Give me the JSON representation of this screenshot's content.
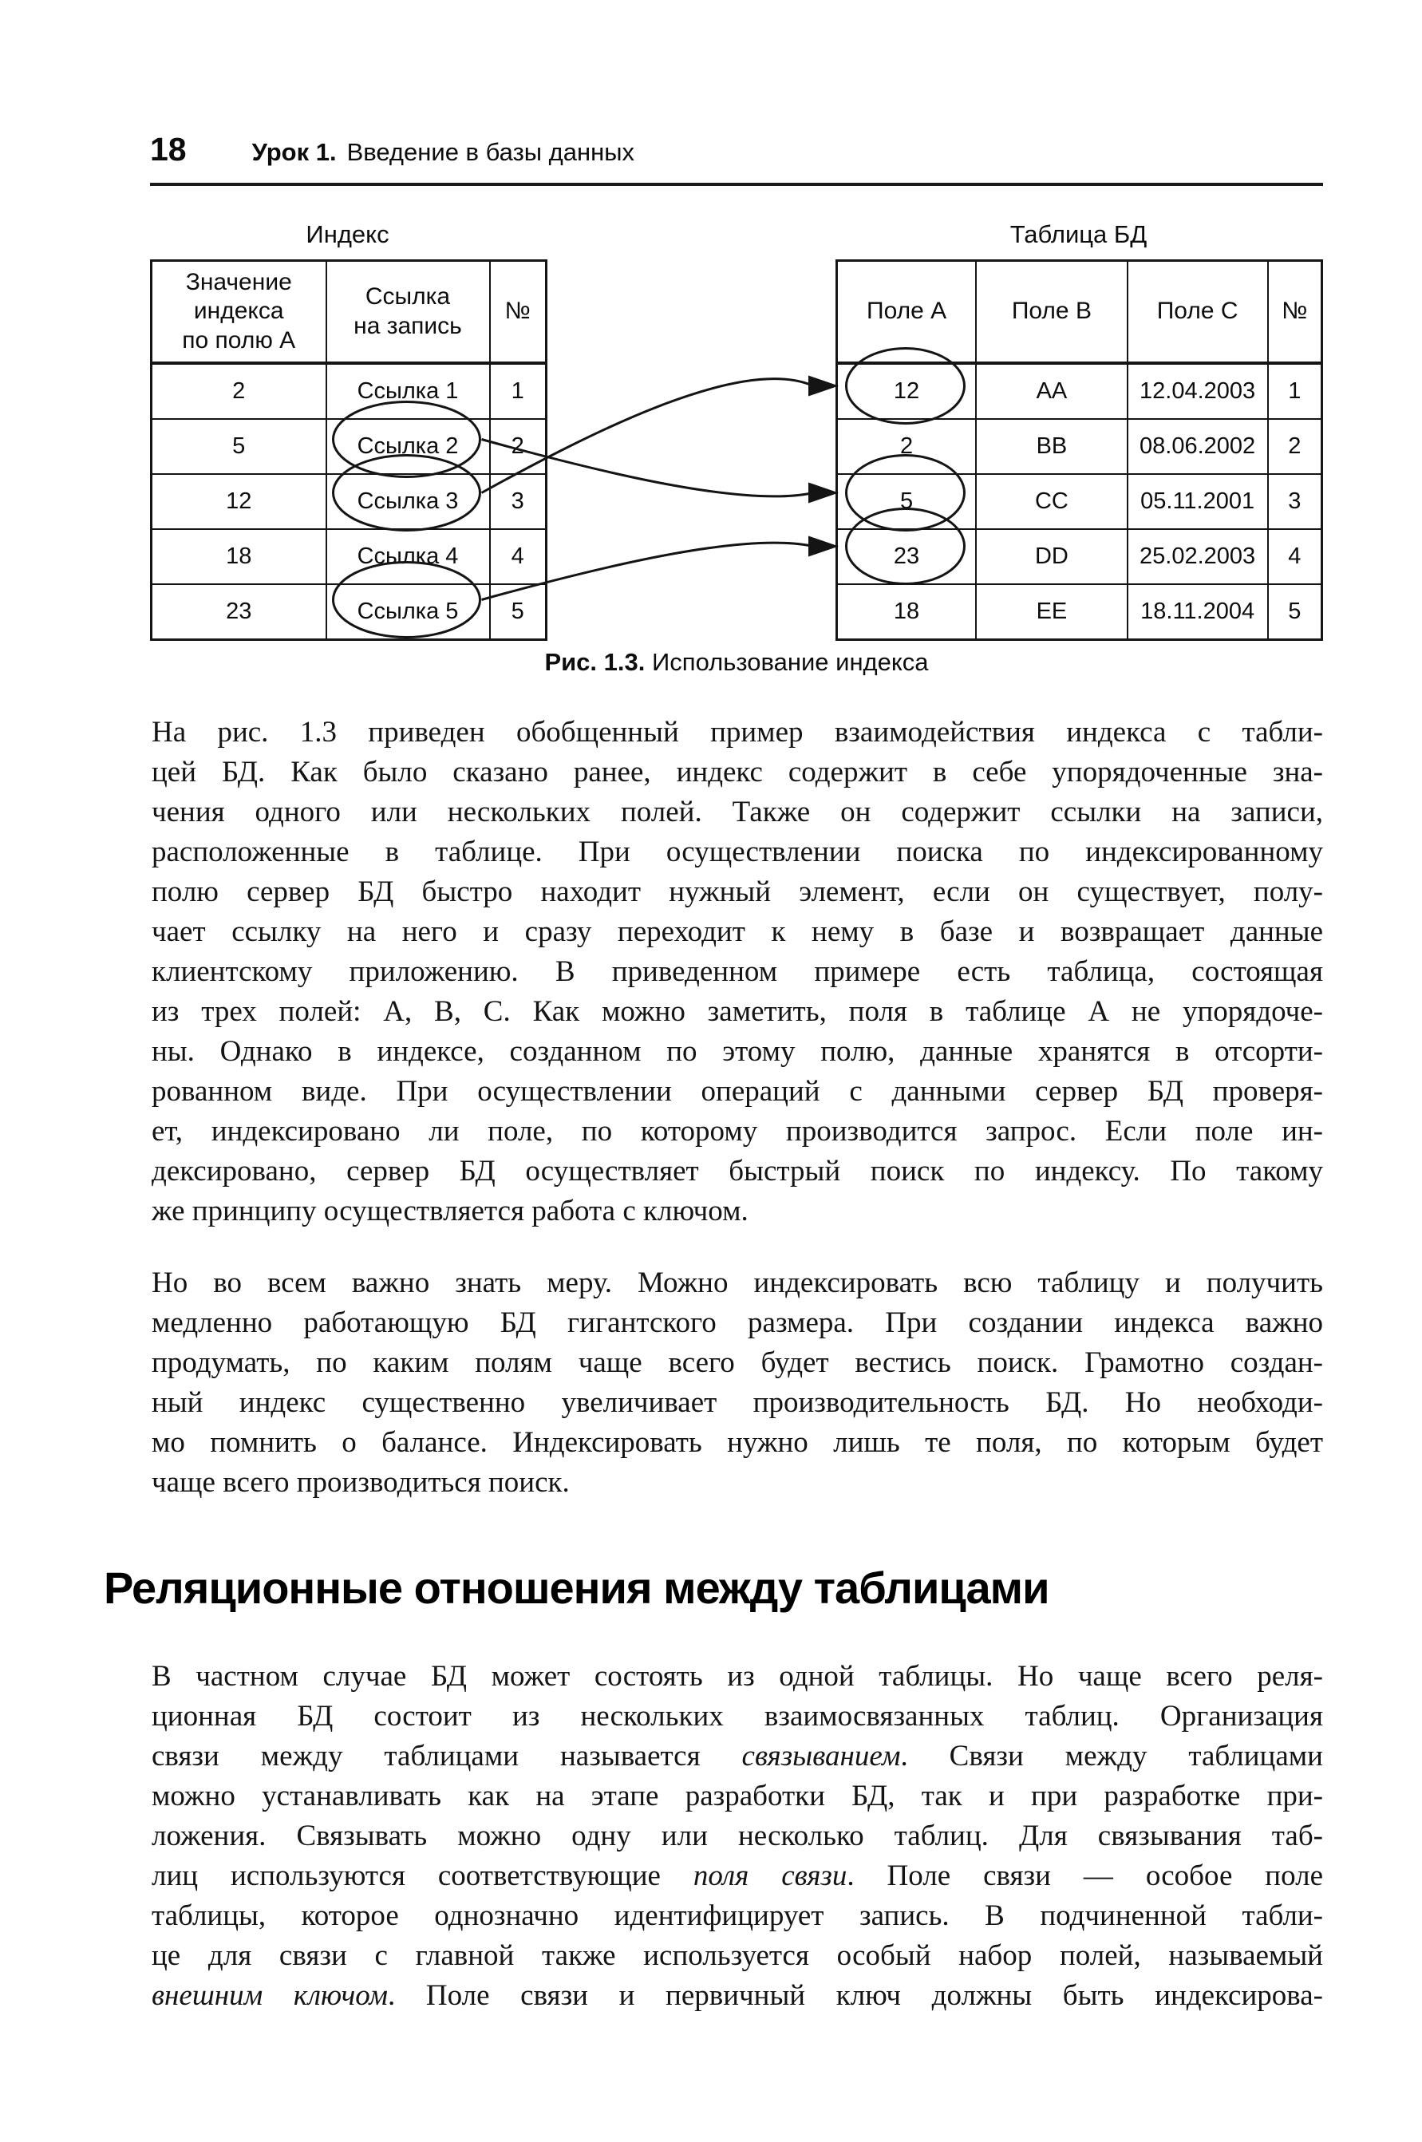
{
  "page": {
    "number": "18",
    "running_head_lesson": "Урок 1.",
    "running_head_title": "Введение в базы данных"
  },
  "figure": {
    "left_table": {
      "title": "Индекс",
      "headers": [
        "Значение\nиндекса\nпо полю А",
        "Ссылка\nна запись",
        "№"
      ],
      "rows": [
        [
          "2",
          "Ссылка 1",
          "1"
        ],
        [
          "5",
          "Ссылка 2",
          "2"
        ],
        [
          "12",
          "Ссылка 3",
          "3"
        ],
        [
          "18",
          "Ссылка 4",
          "4"
        ],
        [
          "23",
          "Ссылка 5",
          "5"
        ]
      ],
      "circled_rows": [
        1,
        2,
        4
      ],
      "circled_column": 1
    },
    "right_table": {
      "title": "Таблица БД",
      "headers": [
        "Поле А",
        "Поле В",
        "Поле С",
        "№"
      ],
      "rows": [
        [
          "12",
          "AA",
          "12.04.2003",
          "1"
        ],
        [
          "2",
          "BB",
          "08.06.2002",
          "2"
        ],
        [
          "5",
          "CC",
          "05.11.2001",
          "3"
        ],
        [
          "23",
          "DD",
          "25.02.2003",
          "4"
        ],
        [
          "18",
          "EE",
          "18.11.2004",
          "5"
        ]
      ],
      "circled_rows": [
        0,
        2,
        3
      ],
      "circled_column": 0
    },
    "arrows": [
      {
        "from_row": 2,
        "to_row": 0
      },
      {
        "from_row": 1,
        "to_row": 2
      },
      {
        "from_row": 4,
        "to_row": 3
      }
    ],
    "caption_label": "Рис. 1.3.",
    "caption_text": "Использование индекса"
  },
  "body": [
    {
      "type": "paragraph",
      "last_line_left": true,
      "lines": [
        [
          {
            "t": "На рис. 1.3 приведен обобщенный пример взаимодействия индекса с табли-"
          }
        ],
        [
          {
            "t": "цей БД. Как было сказано ранее, индекс содержит в себе упорядоченные зна-"
          }
        ],
        [
          {
            "t": "чения одного или нескольких полей. Также он содержит ссылки на записи,"
          }
        ],
        [
          {
            "t": "расположенные в таблице. При осуществлении поиска по индексированному"
          }
        ],
        [
          {
            "t": "полю сервер БД быстро находит нужный элемент, если он существует, полу-"
          }
        ],
        [
          {
            "t": "чает ссылку на него и сразу переходит к нему в базе и возвращает данные"
          }
        ],
        [
          {
            "t": "клиентскому приложению. В приведенном примере есть таблица, состоящая"
          }
        ],
        [
          {
            "t": "из трех полей: А, В, С. Как можно заметить, поля в таблице А не упорядоче-"
          }
        ],
        [
          {
            "t": "ны. Однако в индексе, созданном по этому полю, данные хранятся в отсорти-"
          }
        ],
        [
          {
            "t": "рованном виде. При осуществлении операций с данными сервер БД проверя-"
          }
        ],
        [
          {
            "t": "ет, индексировано ли поле, по которому производится запрос. Если поле ин-"
          }
        ],
        [
          {
            "t": "дексировано, сервер БД осуществляет быстрый поиск по индексу. По такому"
          }
        ],
        [
          {
            "t": "же принципу осуществляется работа с ключом."
          }
        ]
      ]
    },
    {
      "type": "paragraph",
      "last_line_left": true,
      "lines": [
        [
          {
            "t": "Но во всем важно знать меру. Можно индексировать всю таблицу и получить"
          }
        ],
        [
          {
            "t": "медленно работающую БД гигантского размера. При создании индекса важно"
          }
        ],
        [
          {
            "t": "продумать, по каким полям чаще всего будет вестись поиск. Грамотно создан-"
          }
        ],
        [
          {
            "t": "ный индекс существенно увеличивает производительность БД. Но необходи-"
          }
        ],
        [
          {
            "t": "мо помнить о балансе. Индексировать нужно лишь те поля, по которым будет"
          }
        ],
        [
          {
            "t": "чаще всего производиться поиск."
          }
        ]
      ]
    },
    {
      "type": "heading",
      "text": "Реляционные отношения между таблицами"
    },
    {
      "type": "paragraph",
      "last_line_left": false,
      "lines": [
        [
          {
            "t": "В частном случае БД может состоять из одной таблицы. Но чаще всего реля-"
          }
        ],
        [
          {
            "t": "ционная БД состоит из нескольких взаимосвязанных таблиц. Организация"
          }
        ],
        [
          {
            "t": "связи между таблицами называется "
          },
          {
            "t": "связыванием",
            "i": true
          },
          {
            "t": ". Связи между таблицами"
          }
        ],
        [
          {
            "t": "можно устанавливать как на этапе разработки БД, так и при разработке при-"
          }
        ],
        [
          {
            "t": "ложения. Связывать можно одну или несколько таблиц. Для связывания таб-"
          }
        ],
        [
          {
            "t": "лиц используются соответствующие "
          },
          {
            "t": "поля связи",
            "i": true
          },
          {
            "t": ". Поле связи — особое поле"
          }
        ],
        [
          {
            "t": "таблицы, которое однозначно идентифицирует запись. В подчиненной табли-"
          }
        ],
        [
          {
            "t": "це для связи с главной также используется особый набор полей, называемый"
          }
        ],
        [
          {
            "t": "внешним ключом",
            "i": true
          },
          {
            "t": ". Поле связи и первичный ключ должны быть индексирова-"
          }
        ]
      ]
    }
  ]
}
